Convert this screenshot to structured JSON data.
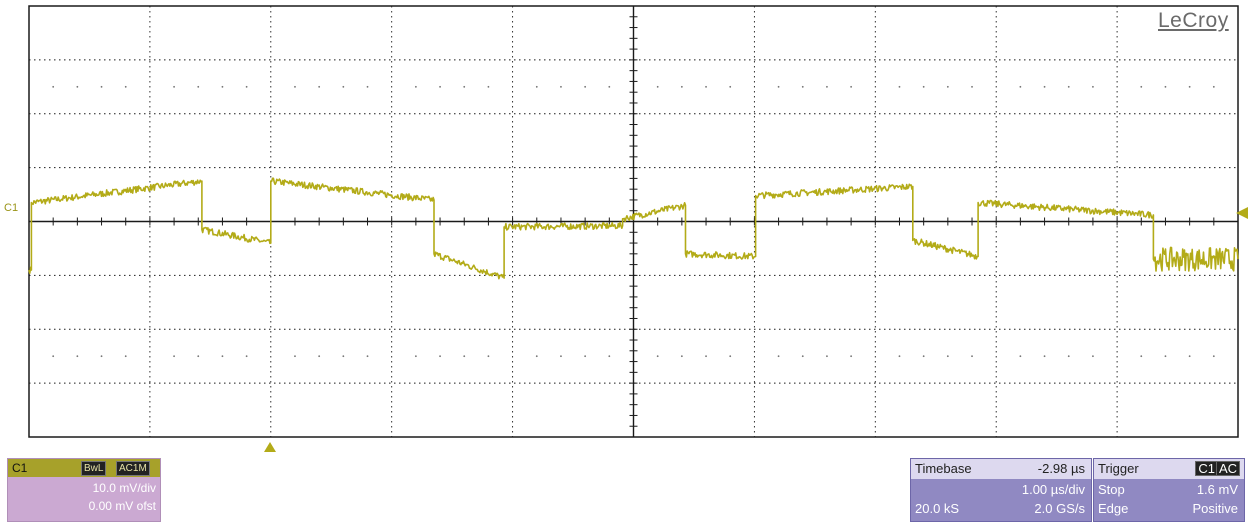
{
  "brand": "LeCroy",
  "channel_marker": "C1",
  "colors": {
    "trace": "#b3ab18",
    "grid": "#1a1a1a",
    "channel_box": "#cba9d2",
    "channel_header": "#a7a12a",
    "timebase_box": "#9089c2"
  },
  "channel": {
    "name": "C1",
    "tag_bw": "BwL",
    "tag_coupling": "AC1M",
    "vdiv": "10.0 mV/div",
    "offset": "0.00 mV ofst"
  },
  "timebase": {
    "label": "Timebase",
    "delay": "-2.98 µs",
    "tdiv": "1.00 µs/div",
    "samples": "20.0 kS",
    "rate": "2.0 GS/s"
  },
  "trigger": {
    "label": "Trigger",
    "source_tag": "C1",
    "coupling_tag": "AC",
    "mode": "Stop",
    "level": "1.6 mV",
    "type": "Edge",
    "slope": "Positive"
  },
  "chart_data": {
    "type": "line",
    "x_unit": "µs",
    "y_unit": "mV",
    "xlim": [
      -2.98,
      7.02
    ],
    "ylim": [
      -40,
      40
    ],
    "grid": true,
    "trigger_level_mV": 1.6,
    "segments": [
      {
        "x0": -2.98,
        "x1": -2.96,
        "y0": -9.0,
        "y1": -9.0
      },
      {
        "x0": -2.96,
        "x1": -1.55,
        "y0": 3.5,
        "y1": 7.5
      },
      {
        "x0": -1.55,
        "x1": -0.98,
        "y0": -1.5,
        "y1": -4.0
      },
      {
        "x0": -0.98,
        "x1": 0.37,
        "y0": 7.5,
        "y1": 4.0
      },
      {
        "x0": 0.37,
        "x1": 0.95,
        "y0": -6.0,
        "y1": -10.5
      },
      {
        "x0": 0.95,
        "x1": 1.93,
        "y0": -1.0,
        "y1": -0.8
      },
      {
        "x0": 1.93,
        "x1": 2.45,
        "y0": 0.5,
        "y1": 3.0
      },
      {
        "x0": 2.45,
        "x1": 3.03,
        "y0": -6.0,
        "y1": -6.5
      },
      {
        "x0": 3.03,
        "x1": 4.33,
        "y0": 4.8,
        "y1": 6.5
      },
      {
        "x0": 4.33,
        "x1": 4.87,
        "y0": -3.5,
        "y1": -6.5
      },
      {
        "x0": 4.87,
        "x1": 6.32,
        "y0": 3.5,
        "y1": 1.2
      },
      {
        "x0": 6.32,
        "x1": 7.02,
        "y0": -7.0,
        "y1": -7.0
      }
    ],
    "noise_mV": 0.6,
    "noise_tail_mV": 2.2
  }
}
